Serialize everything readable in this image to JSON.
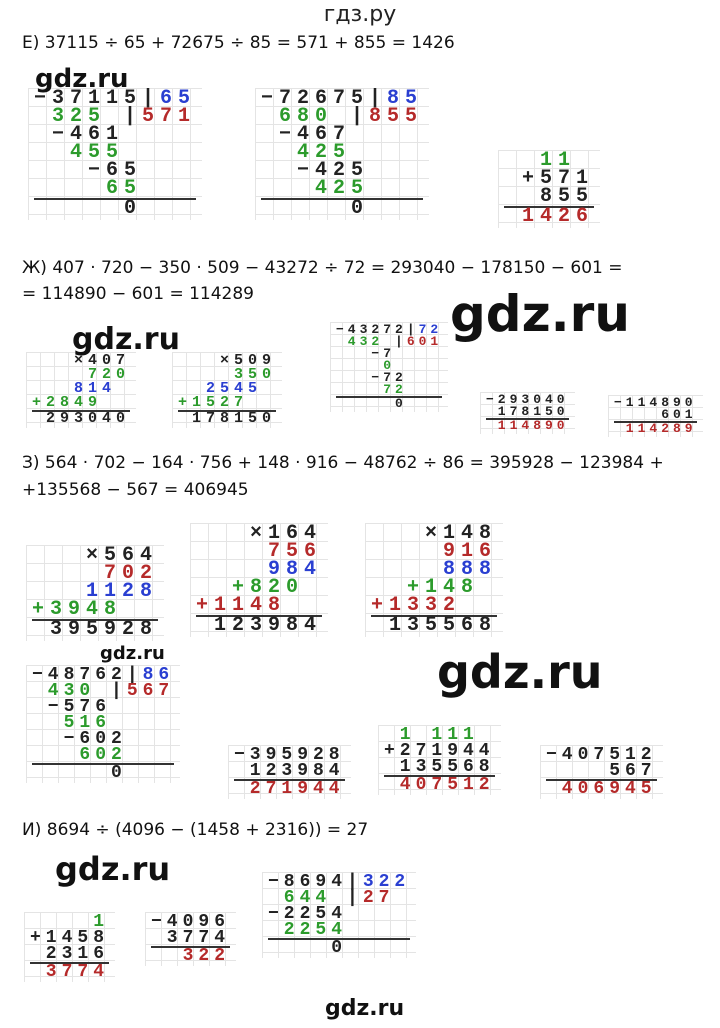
{
  "header": {
    "title": "гдз.ру"
  },
  "palette": {
    "k": "#222222",
    "b": "#2a3fd1",
    "g": "#2c9b2c",
    "r": "#b52a2a"
  },
  "sections": [
    {
      "lines": [
        "Е) 37115 ÷ 65 + 72675 ÷ 85 = 571 + 855 = 1426"
      ],
      "blocks": [
        {
          "rows": [
            [
              [
                "−37115",
                "k"
              ],
              [
                "|",
                "k"
              ],
              [
                "65",
                "b"
              ]
            ],
            [
              [
                " 325 ",
                "g"
              ],
              [
                "|",
                "k"
              ],
              [
                "571",
                "r"
              ]
            ],
            [
              [
                " −461",
                "k"
              ]
            ],
            [
              [
                "  455",
                "g"
              ]
            ],
            [
              [
                "   −65",
                "k"
              ]
            ],
            [
              [
                "    65",
                "g"
              ]
            ],
            [
              [
                "     0",
                "k"
              ]
            ]
          ]
        },
        {
          "rows": [
            [
              [
                "−72675",
                "k"
              ],
              [
                "|",
                "k"
              ],
              [
                "85",
                "b"
              ]
            ],
            [
              [
                " 680 ",
                "g"
              ],
              [
                "|",
                "k"
              ],
              [
                "855",
                "r"
              ]
            ],
            [
              [
                " −467",
                "k"
              ]
            ],
            [
              [
                "  425",
                "g"
              ]
            ],
            [
              [
                "  −425",
                "k"
              ]
            ],
            [
              [
                "   425",
                "g"
              ]
            ],
            [
              [
                "     0",
                "k"
              ]
            ]
          ]
        },
        {
          "rows": [
            [
              [
                "  11",
                "g"
              ]
            ],
            [
              [
                " +571",
                "k"
              ]
            ],
            [
              [
                "  855",
                "k"
              ]
            ],
            [
              [
                " 1426",
                "r"
              ]
            ]
          ]
        }
      ]
    },
    {
      "lines": [
        "Ж) 407 · 720 − 350 · 509 − 43272 ÷ 72 = 293040 − 178150 − 601 =",
        "= 114890 − 601 = 114289"
      ],
      "blocks": [
        {
          "rows": [
            [
              [
                "   ×407",
                "k"
              ]
            ],
            [
              [
                "    720",
                "g"
              ]
            ],
            [
              [
                "   814",
                "b"
              ]
            ],
            [
              [
                "+2849",
                "g"
              ]
            ],
            [
              [
                " 293040",
                "k"
              ]
            ]
          ]
        },
        {
          "rows": [
            [
              [
                "   ×509",
                "k"
              ]
            ],
            [
              [
                "    350",
                "g"
              ]
            ],
            [
              [
                "  2545",
                "b"
              ]
            ],
            [
              [
                "+1527",
                "g"
              ]
            ],
            [
              [
                " 178150",
                "k"
              ]
            ]
          ]
        },
        {
          "rows": [
            [
              [
                "−43272",
                "k"
              ],
              [
                "|",
                "k"
              ],
              [
                "72",
                "b"
              ]
            ],
            [
              [
                " 432 ",
                "g"
              ],
              [
                "|",
                "k"
              ],
              [
                "601",
                "r"
              ]
            ],
            [
              [
                "   −7",
                "k"
              ]
            ],
            [
              [
                "    0",
                "g"
              ]
            ],
            [
              [
                "   −72",
                "k"
              ]
            ],
            [
              [
                "    72",
                "g"
              ]
            ],
            [
              [
                "     0",
                "k"
              ]
            ]
          ]
        },
        {
          "rows": [
            [
              [
                "−293040",
                "k"
              ]
            ],
            [
              [
                " 178150",
                "k"
              ]
            ],
            [
              [
                " 114890",
                "r"
              ]
            ]
          ]
        },
        {
          "rows": [
            [
              [
                "−114890",
                "k"
              ]
            ],
            [
              [
                "    601",
                "k"
              ]
            ],
            [
              [
                " 114289",
                "r"
              ]
            ]
          ]
        }
      ]
    },
    {
      "lines": [
        "З) 564 · 702 − 164 · 756 + 148 · 916 − 48762 ÷ 86 = 395928 − 123984 +",
        "+135568 − 567 = 406945"
      ],
      "blocks": [
        {
          "rows": [
            [
              [
                "   ×564",
                "k"
              ]
            ],
            [
              [
                "    702",
                "r"
              ]
            ],
            [
              [
                "   1128",
                "b"
              ]
            ],
            [
              [
                "+3948",
                "g"
              ]
            ],
            [
              [
                " 395928",
                "k"
              ]
            ]
          ]
        },
        {
          "rows": [
            [
              [
                "   ×164",
                "k"
              ]
            ],
            [
              [
                "    756",
                "r"
              ]
            ],
            [
              [
                "    984",
                "b"
              ]
            ],
            [
              [
                "  +820",
                "g"
              ]
            ],
            [
              [
                "+1148",
                "r"
              ]
            ],
            [
              [
                " 123984",
                "k"
              ]
            ]
          ]
        },
        {
          "rows": [
            [
              [
                "   ×148",
                "k"
              ]
            ],
            [
              [
                "    916",
                "r"
              ]
            ],
            [
              [
                "    888",
                "b"
              ]
            ],
            [
              [
                "  +148",
                "g"
              ]
            ],
            [
              [
                "+1332",
                "r"
              ]
            ],
            [
              [
                " 135568",
                "k"
              ]
            ]
          ]
        },
        {
          "rows": [
            [
              [
                "−48762",
                "k"
              ],
              [
                "|",
                "k"
              ],
              [
                "86",
                "b"
              ]
            ],
            [
              [
                " 430 ",
                "g"
              ],
              [
                "|",
                "k"
              ],
              [
                "567",
                "r"
              ]
            ],
            [
              [
                " −576",
                "k"
              ]
            ],
            [
              [
                "  516",
                "g"
              ]
            ],
            [
              [
                "  −602",
                "k"
              ]
            ],
            [
              [
                "   602",
                "g"
              ]
            ],
            [
              [
                "     0",
                "k"
              ]
            ]
          ]
        },
        {
          "rows": [
            [
              [
                "−395928",
                "k"
              ]
            ],
            [
              [
                " 123984",
                "k"
              ]
            ],
            [
              [
                " 271944",
                "r"
              ]
            ]
          ]
        },
        {
          "rows": [
            [
              [
                " 1 111",
                "g"
              ]
            ],
            [
              [
                "+271944",
                "k"
              ]
            ],
            [
              [
                " 135568",
                "k"
              ]
            ],
            [
              [
                " 407512",
                "r"
              ]
            ]
          ]
        },
        {
          "rows": [
            [
              [
                "−407512",
                "k"
              ]
            ],
            [
              [
                "    567",
                "k"
              ]
            ],
            [
              [
                " 406945",
                "r"
              ]
            ]
          ]
        }
      ]
    },
    {
      "lines": [
        "И) 8694 ÷ (4096 − (1458 + 2316)) = 27"
      ],
      "blocks": [
        {
          "rows": [
            [
              [
                "    1",
                "g"
              ]
            ],
            [
              [
                "+1458",
                "k"
              ]
            ],
            [
              [
                " 2316",
                "k"
              ]
            ],
            [
              [
                " 3774",
                "r"
              ]
            ]
          ]
        },
        {
          "rows": [
            [
              [
                "−4096",
                "k"
              ]
            ],
            [
              [
                " 3774",
                "k"
              ]
            ],
            [
              [
                "  322",
                "r"
              ]
            ]
          ]
        },
        {
          "rows": [
            [
              [
                "−8694",
                "k"
              ],
              [
                "|",
                "k"
              ],
              [
                "322",
                "b"
              ]
            ],
            [
              [
                " 644 ",
                "g"
              ],
              [
                "|",
                "k"
              ],
              [
                "27",
                "r"
              ]
            ],
            [
              [
                "−2254",
                "k"
              ]
            ],
            [
              [
                " 2254",
                "g"
              ]
            ],
            [
              [
                "    0",
                "k"
              ]
            ]
          ]
        }
      ]
    }
  ],
  "watermarks": [
    "gdz.ru",
    "gdz.ru",
    "gdz.ru",
    "gdz.ru",
    "gdz.ru",
    "gdz.ru",
    "gdz.ru"
  ]
}
